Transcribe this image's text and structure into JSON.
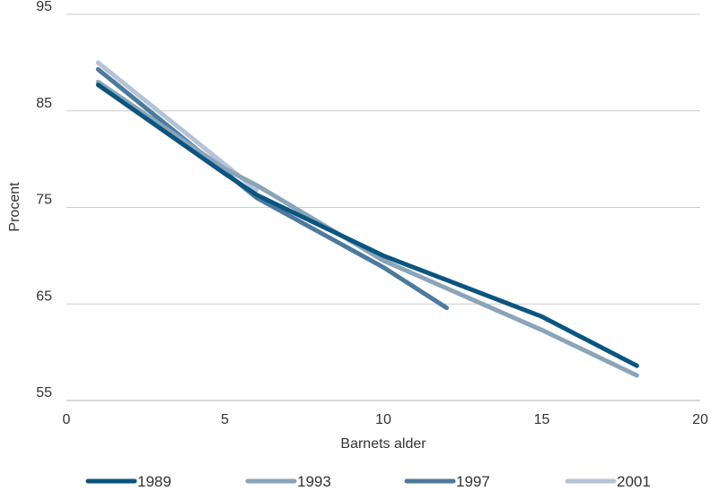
{
  "chart_data": {
    "type": "line",
    "title": "",
    "xlabel": "Barnets alder",
    "ylabel": "Procent",
    "xlim": [
      0,
      20
    ],
    "ylim": [
      55,
      95
    ],
    "x_ticks": [
      0,
      5,
      10,
      15,
      20
    ],
    "y_ticks": [
      55,
      65,
      75,
      85,
      95
    ],
    "grid": "horizontal",
    "legend_position": "bottom",
    "series": [
      {
        "name": "1989",
        "color": "#0a5581",
        "points": [
          [
            1,
            87.7
          ],
          [
            5,
            78.5
          ],
          [
            6,
            76.3
          ],
          [
            10,
            70.0
          ],
          [
            15,
            63.7
          ],
          [
            18,
            58.6
          ]
        ]
      },
      {
        "name": "1993",
        "color": "#8aa4b9",
        "points": [
          [
            1,
            88.0
          ],
          [
            5,
            79.0
          ],
          [
            6,
            77.3
          ],
          [
            10,
            69.5
          ],
          [
            15,
            62.3
          ],
          [
            18,
            57.6
          ]
        ]
      },
      {
        "name": "1997",
        "color": "#4d7a9e",
        "points": [
          [
            1,
            89.3
          ],
          [
            6,
            76.0
          ],
          [
            10,
            68.8
          ],
          [
            12,
            64.6
          ]
        ]
      },
      {
        "name": "2001",
        "color": "#b4c3d5",
        "points": [
          [
            1,
            90.0
          ],
          [
            6,
            76.8
          ]
        ]
      }
    ]
  }
}
